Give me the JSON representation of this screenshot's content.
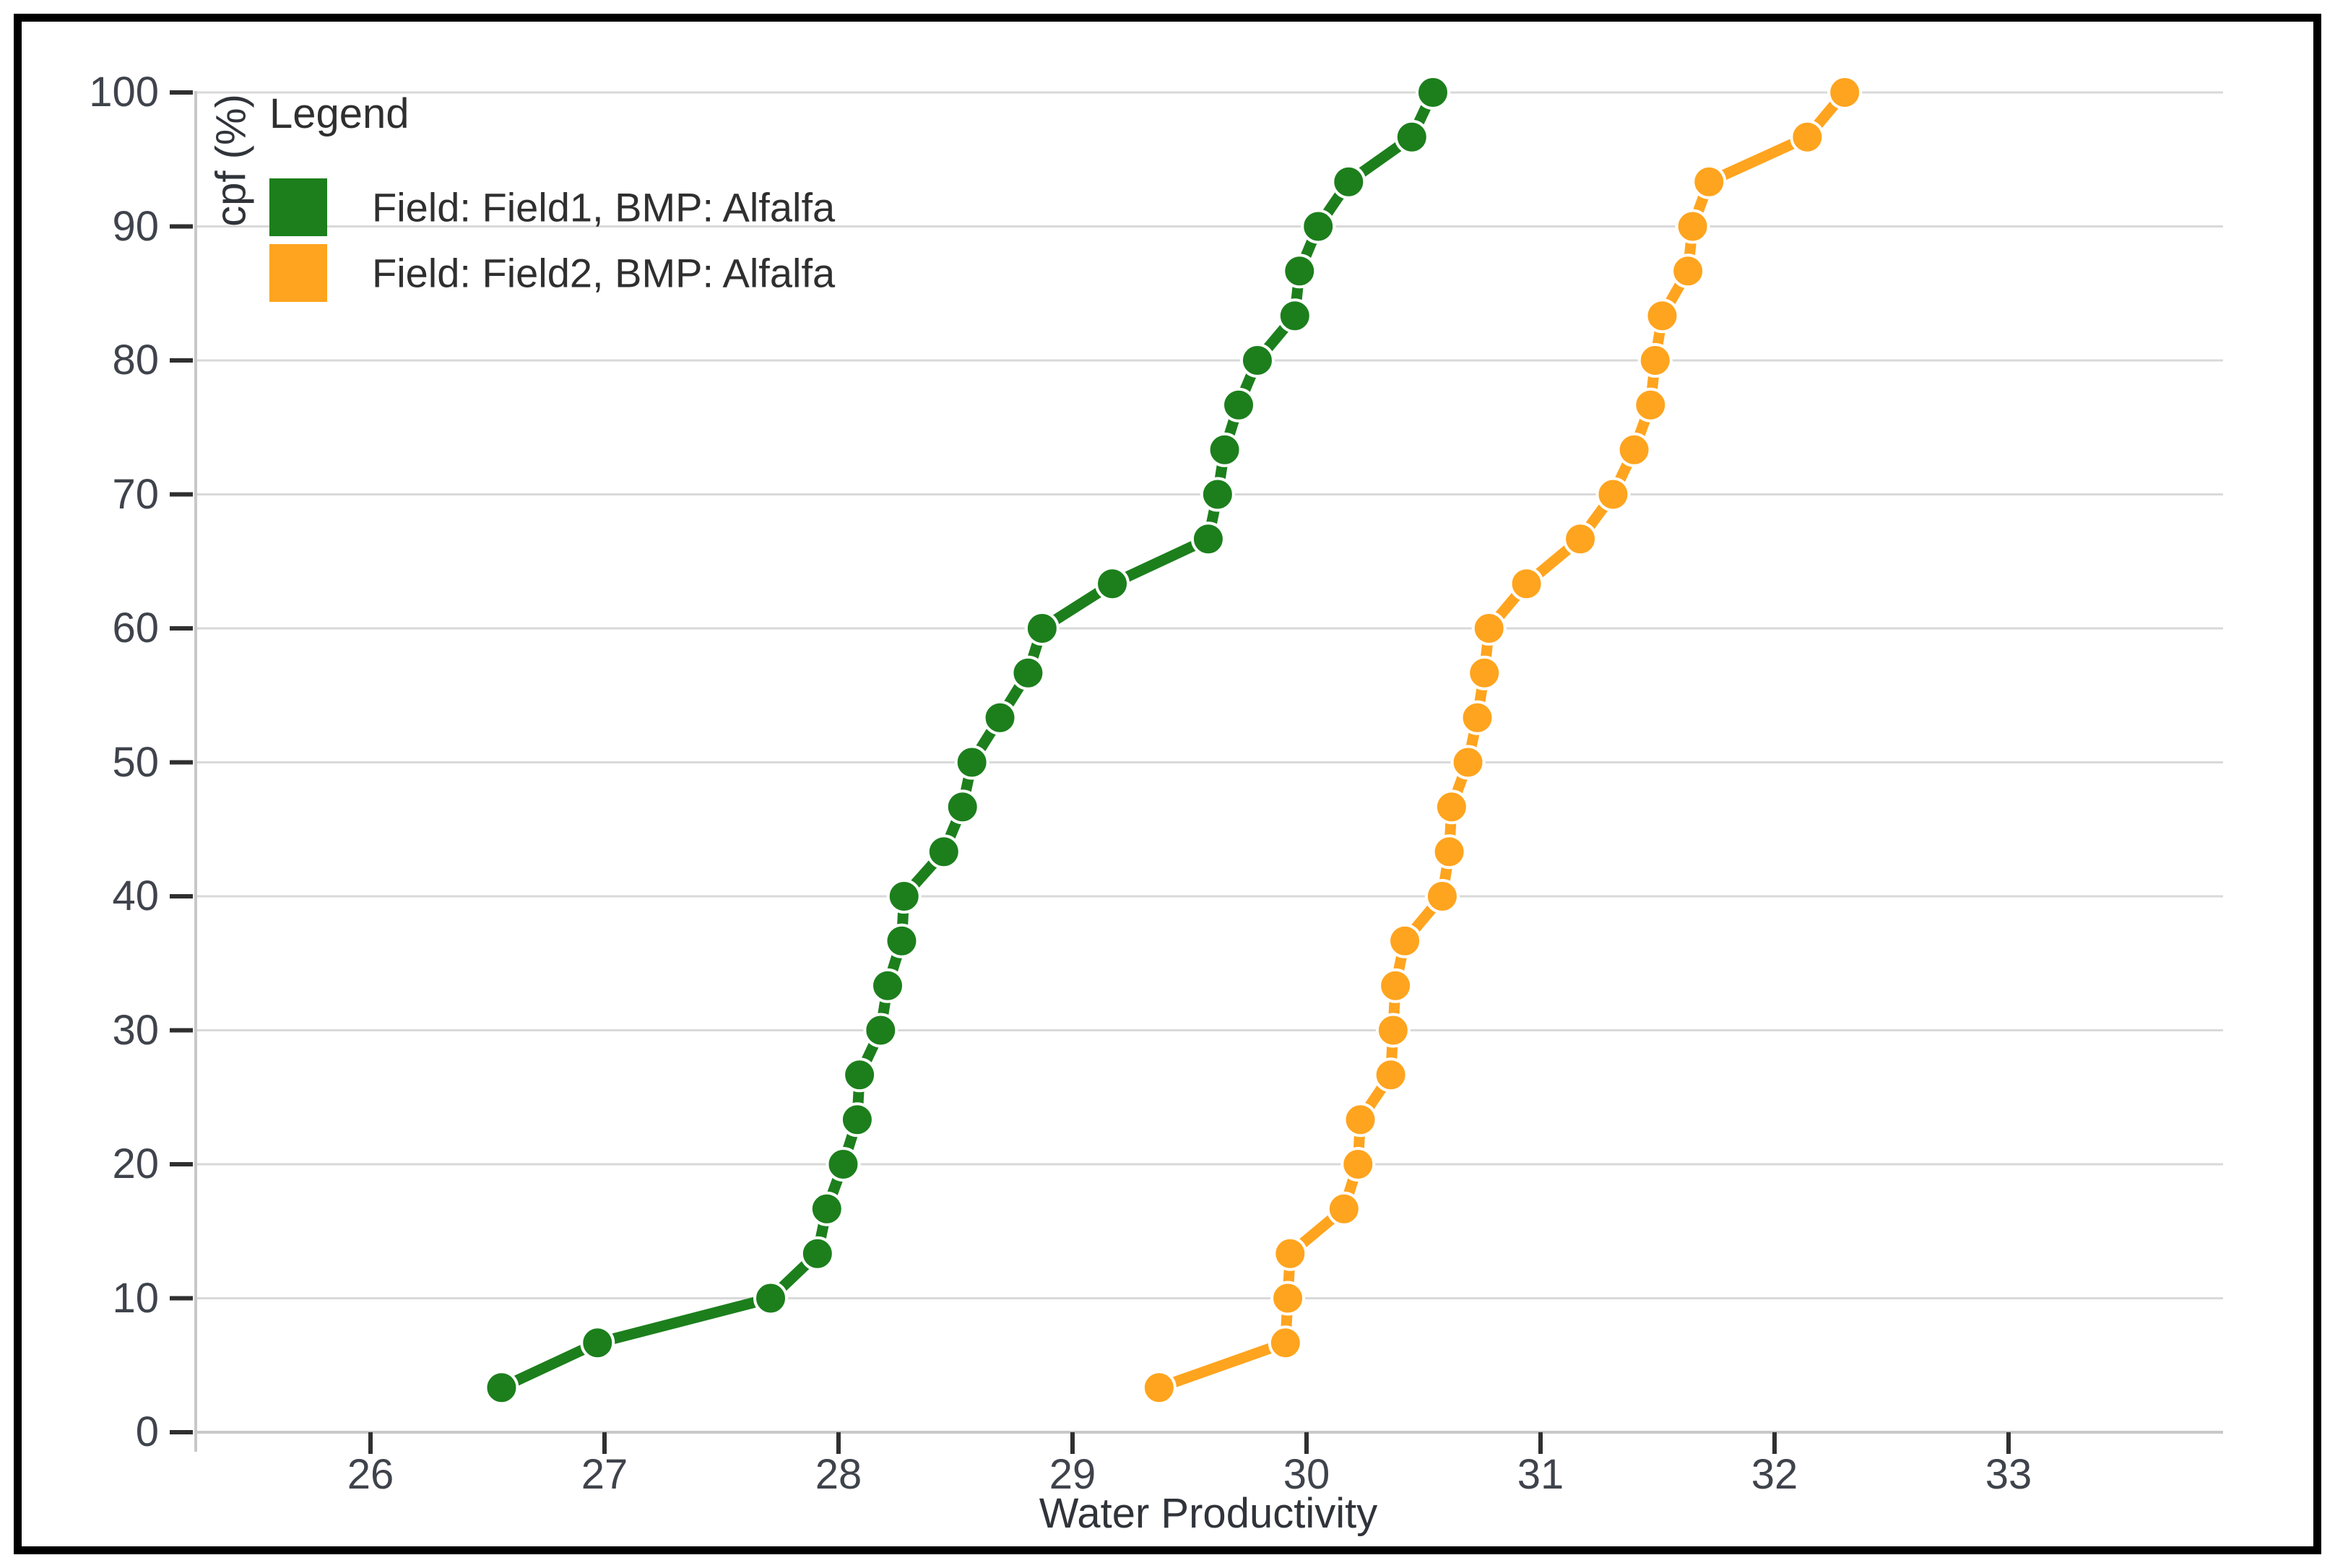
{
  "figure": {
    "background": "#ffffff",
    "frame_color": "#000000"
  },
  "legend": {
    "title": "Legend",
    "items": [
      {
        "label": "Field: Field1, BMP: Alfalfa",
        "field": "Field1",
        "bmp": "Alfalfa",
        "color": "#1c7f1c"
      },
      {
        "label": "Field: Field2, BMP: Alfalfa",
        "field": "Field2",
        "bmp": "Alfalfa",
        "color": "#ffa41e"
      }
    ]
  },
  "axes": {
    "x": {
      "label": "Water Productivity",
      "tick_labels": [
        "26",
        "27",
        "28",
        "29",
        "30",
        "31",
        "32",
        "33"
      ],
      "tick_values": [
        26,
        27,
        28,
        29,
        30,
        31,
        32,
        33
      ]
    },
    "y": {
      "label": "cpf (%)",
      "tick_labels": [
        "0",
        "10",
        "20",
        "30",
        "40",
        "50",
        "60",
        "70",
        "80",
        "90",
        "100"
      ],
      "tick_values": [
        0,
        10,
        20,
        30,
        40,
        50,
        60,
        70,
        80,
        90,
        100
      ],
      "grid_values": [
        10,
        20,
        30,
        40,
        50,
        60,
        70,
        80,
        90,
        100
      ]
    }
  },
  "chart_data": {
    "type": "line",
    "title": "",
    "xlabel": "Water Productivity",
    "ylabel": "cpf (%)",
    "xlim": [
      25.25,
      33.9
    ],
    "ylim": [
      0,
      100
    ],
    "grid": "horizontal",
    "legend_position": "top-left",
    "marker": "circle",
    "series": [
      {
        "name": "Field: Field1, BMP: Alfalfa",
        "color": "#1c7f1c",
        "points": [
          [
            26.56,
            3.33
          ],
          [
            26.97,
            6.67
          ],
          [
            27.71,
            10
          ],
          [
            27.91,
            13.33
          ],
          [
            27.95,
            16.67
          ],
          [
            28.02,
            20
          ],
          [
            28.08,
            23.33
          ],
          [
            28.09,
            26.67
          ],
          [
            28.18,
            30
          ],
          [
            28.21,
            33.33
          ],
          [
            28.27,
            36.67
          ],
          [
            28.28,
            40
          ],
          [
            28.45,
            43.33
          ],
          [
            28.53,
            46.67
          ],
          [
            28.57,
            50
          ],
          [
            28.69,
            53.33
          ],
          [
            28.81,
            56.67
          ],
          [
            28.87,
            60
          ],
          [
            29.17,
            63.33
          ],
          [
            29.58,
            66.67
          ],
          [
            29.62,
            70
          ],
          [
            29.65,
            73.33
          ],
          [
            29.71,
            76.67
          ],
          [
            29.79,
            80
          ],
          [
            29.95,
            83.33
          ],
          [
            29.97,
            86.67
          ],
          [
            30.05,
            90
          ],
          [
            30.18,
            93.33
          ],
          [
            30.45,
            96.67
          ],
          [
            30.54,
            100
          ]
        ]
      },
      {
        "name": "Field: Field2, BMP: Alfalfa",
        "color": "#ffa41e",
        "points": [
          [
            29.37,
            3.33
          ],
          [
            29.91,
            6.67
          ],
          [
            29.92,
            10
          ],
          [
            29.93,
            13.33
          ],
          [
            30.16,
            16.67
          ],
          [
            30.22,
            20
          ],
          [
            30.23,
            23.33
          ],
          [
            30.36,
            26.67
          ],
          [
            30.37,
            30
          ],
          [
            30.38,
            33.33
          ],
          [
            30.42,
            36.67
          ],
          [
            30.58,
            40
          ],
          [
            30.61,
            43.33
          ],
          [
            30.62,
            46.67
          ],
          [
            30.69,
            50
          ],
          [
            30.73,
            53.33
          ],
          [
            30.76,
            56.67
          ],
          [
            30.78,
            60
          ],
          [
            30.94,
            63.33
          ],
          [
            31.17,
            66.67
          ],
          [
            31.31,
            70
          ],
          [
            31.4,
            73.33
          ],
          [
            31.47,
            76.67
          ],
          [
            31.49,
            80
          ],
          [
            31.52,
            83.33
          ],
          [
            31.63,
            86.67
          ],
          [
            31.65,
            90
          ],
          [
            31.72,
            93.33
          ],
          [
            32.14,
            96.67
          ],
          [
            32.3,
            100
          ]
        ]
      }
    ]
  },
  "colors": {
    "gridline": "#d9d9d9",
    "axis_line": "#c8c8c8",
    "tick": "#2f2f2f",
    "tick_label": "#3f434b"
  }
}
